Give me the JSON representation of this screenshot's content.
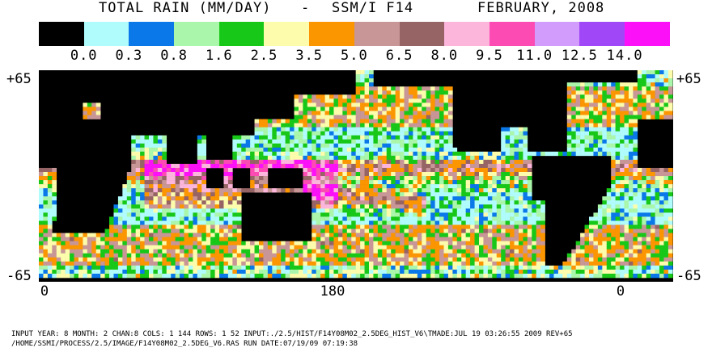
{
  "title": {
    "left": "TOTAL RAIN (MM/DAY)",
    "sep": "-",
    "sensor": "SSM/I F14",
    "date": "FEBRUARY, 2008"
  },
  "legend": {
    "colors": [
      "#000000",
      "#b0fcfc",
      "#0a78e8",
      "#aaf6aa",
      "#18c818",
      "#fcfcac",
      "#fc9600",
      "#c89696",
      "#966464",
      "#fcb6dc",
      "#fc4cb4",
      "#d29cfc",
      "#a048f8",
      "#fc10f8"
    ],
    "ticks": [
      "0.0",
      "0.3",
      "0.8",
      "1.6",
      "2.5",
      "3.5",
      "5.0",
      "6.5",
      "8.0",
      "9.5",
      "11.0",
      "12.5",
      "14.0"
    ]
  },
  "axes": {
    "lat_top_left": "+65",
    "lat_top_right": "+65",
    "lat_bottom_left": "-65",
    "lat_bottom_right": "-65",
    "lon_labels": [
      "0",
      "180",
      "0"
    ]
  },
  "footer": {
    "line1": "INPUT YEAR: 8 MONTH: 2 CHAN:8 COLS:   1 144 ROWS:  1 52 INPUT:./2.5/HIST/F14Y08M02_2.5DEG_HIST_V6\\TMADE:JUL 19 03:26:55 2009 REV+65",
    "line2": "/HOME/SSMI/PROCESS/2.5/IMAGE/F14Y08M02_2.5DEG_V6.RAS  RUN DATE:07/19/09 07:19:38"
  }
}
